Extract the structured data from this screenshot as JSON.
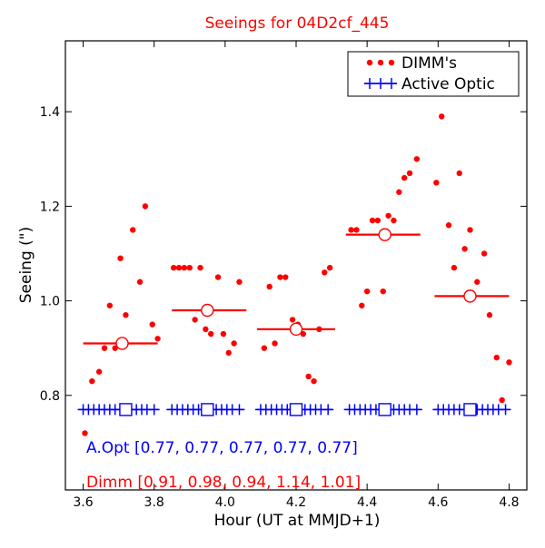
{
  "chart_data": {
    "type": "scatter",
    "title": "Seeings for 04D2cf_445",
    "xlabel": "Hour (UT at MMJD+1)",
    "ylabel": "Seeing (\")",
    "xlim": [
      3.55,
      4.85
    ],
    "ylim": [
      0.6,
      1.55
    ],
    "x_ticks": [
      "3.6",
      "3.8",
      "4.0",
      "4.2",
      "4.4",
      "4.6",
      "4.8"
    ],
    "y_ticks": [
      "0.8",
      "1.0",
      "1.2",
      "1.4"
    ],
    "legend_position": "top-right",
    "legend": [
      {
        "label": "DIMM's",
        "marker": "dots",
        "color": "#ff0000"
      },
      {
        "label": "Active Optic",
        "marker": "plus",
        "color": "#0000ff"
      }
    ],
    "annotations": [
      {
        "text": "A.Opt [0.77, 0.77, 0.77, 0.77, 0.77]",
        "color": "#0000ff"
      },
      {
        "text": "Dimm [0.91, 0.98, 0.94, 1.14, 1.01]",
        "color": "#ff0000"
      }
    ],
    "series": [
      {
        "name": "DIMM's",
        "color": "#ff0000",
        "points": [
          [
            3.605,
            0.72
          ],
          [
            3.625,
            0.83
          ],
          [
            3.645,
            0.85
          ],
          [
            3.66,
            0.9
          ],
          [
            3.675,
            0.99
          ],
          [
            3.69,
            0.9
          ],
          [
            3.705,
            1.09
          ],
          [
            3.72,
            0.97
          ],
          [
            3.74,
            1.15
          ],
          [
            3.76,
            1.04
          ],
          [
            3.775,
            1.2
          ],
          [
            3.795,
            0.95
          ],
          [
            3.81,
            0.92
          ],
          [
            3.855,
            1.07
          ],
          [
            3.87,
            1.07
          ],
          [
            3.885,
            1.07
          ],
          [
            3.9,
            1.07
          ],
          [
            3.915,
            0.96
          ],
          [
            3.93,
            1.07
          ],
          [
            3.945,
            0.94
          ],
          [
            3.96,
            0.93
          ],
          [
            3.98,
            1.05
          ],
          [
            3.995,
            0.93
          ],
          [
            4.01,
            0.89
          ],
          [
            4.025,
            0.91
          ],
          [
            4.04,
            1.04
          ],
          [
            4.11,
            0.9
          ],
          [
            4.125,
            1.03
          ],
          [
            4.14,
            0.91
          ],
          [
            4.155,
            1.05
          ],
          [
            4.17,
            1.05
          ],
          [
            4.19,
            0.96
          ],
          [
            4.205,
            0.95
          ],
          [
            4.22,
            0.93
          ],
          [
            4.235,
            0.84
          ],
          [
            4.25,
            0.83
          ],
          [
            4.265,
            0.94
          ],
          [
            4.28,
            1.06
          ],
          [
            4.295,
            1.07
          ],
          [
            4.355,
            1.15
          ],
          [
            4.37,
            1.15
          ],
          [
            4.385,
            0.99
          ],
          [
            4.4,
            1.02
          ],
          [
            4.415,
            1.17
          ],
          [
            4.43,
            1.17
          ],
          [
            4.445,
            1.02
          ],
          [
            4.46,
            1.18
          ],
          [
            4.475,
            1.17
          ],
          [
            4.49,
            1.23
          ],
          [
            4.505,
            1.26
          ],
          [
            4.52,
            1.27
          ],
          [
            4.54,
            1.3
          ],
          [
            4.595,
            1.25
          ],
          [
            4.61,
            1.39
          ],
          [
            4.63,
            1.16
          ],
          [
            4.645,
            1.07
          ],
          [
            4.66,
            1.27
          ],
          [
            4.675,
            1.11
          ],
          [
            4.69,
            1.15
          ],
          [
            4.71,
            1.04
          ],
          [
            4.73,
            1.1
          ],
          [
            4.745,
            0.97
          ],
          [
            4.765,
            0.88
          ],
          [
            4.78,
            0.79
          ],
          [
            4.8,
            0.87
          ]
        ]
      },
      {
        "name": "Active Optic",
        "color": "#0000ff",
        "groups": [
          {
            "x": [
              3.6,
              3.615,
              3.63,
              3.645,
              3.66,
              3.675,
              3.69,
              3.705,
              3.735,
              3.75,
              3.765,
              3.78,
              3.8
            ],
            "y": 0.77
          },
          {
            "x": [
              3.85,
              3.865,
              3.88,
              3.895,
              3.91,
              3.925,
              3.94,
              3.975,
              3.99,
              4.005,
              4.02,
              4.04
            ],
            "y": 0.77
          },
          {
            "x": [
              4.1,
              4.115,
              4.13,
              4.145,
              4.16,
              4.175,
              4.19,
              4.225,
              4.24,
              4.255,
              4.27,
              4.29
            ],
            "y": 0.77
          },
          {
            "x": [
              4.35,
              4.365,
              4.38,
              4.395,
              4.41,
              4.425,
              4.46,
              4.475,
              4.49,
              4.505,
              4.52,
              4.54
            ],
            "y": 0.77
          },
          {
            "x": [
              4.6,
              4.615,
              4.63,
              4.645,
              4.66,
              4.675,
              4.71,
              4.725,
              4.74,
              4.755,
              4.77,
              4.79
            ],
            "y": 0.77
          }
        ]
      },
      {
        "name": "DIMM mean",
        "color": "#ff0000",
        "marker": "open-circle",
        "bins": [
          {
            "x0": 3.6,
            "x1": 3.81,
            "center": 3.71,
            "value": 0.91
          },
          {
            "x0": 3.85,
            "x1": 4.06,
            "center": 3.95,
            "value": 0.98
          },
          {
            "x0": 4.09,
            "x1": 4.31,
            "center": 4.2,
            "value": 0.94
          },
          {
            "x0": 4.34,
            "x1": 4.55,
            "center": 4.45,
            "value": 1.14
          },
          {
            "x0": 4.59,
            "x1": 4.8,
            "center": 4.69,
            "value": 1.01
          }
        ]
      },
      {
        "name": "Active Optic mean",
        "color": "#0000ff",
        "marker": "open-square",
        "bins": [
          {
            "x0": 3.6,
            "x1": 3.82,
            "center": 3.72,
            "value": 0.77
          },
          {
            "x0": 3.85,
            "x1": 4.06,
            "center": 3.95,
            "value": 0.77
          },
          {
            "x0": 4.09,
            "x1": 4.31,
            "center": 4.2,
            "value": 0.77
          },
          {
            "x0": 4.34,
            "x1": 4.56,
            "center": 4.45,
            "value": 0.77
          },
          {
            "x0": 4.59,
            "x1": 4.81,
            "center": 4.69,
            "value": 0.77
          }
        ]
      }
    ]
  }
}
